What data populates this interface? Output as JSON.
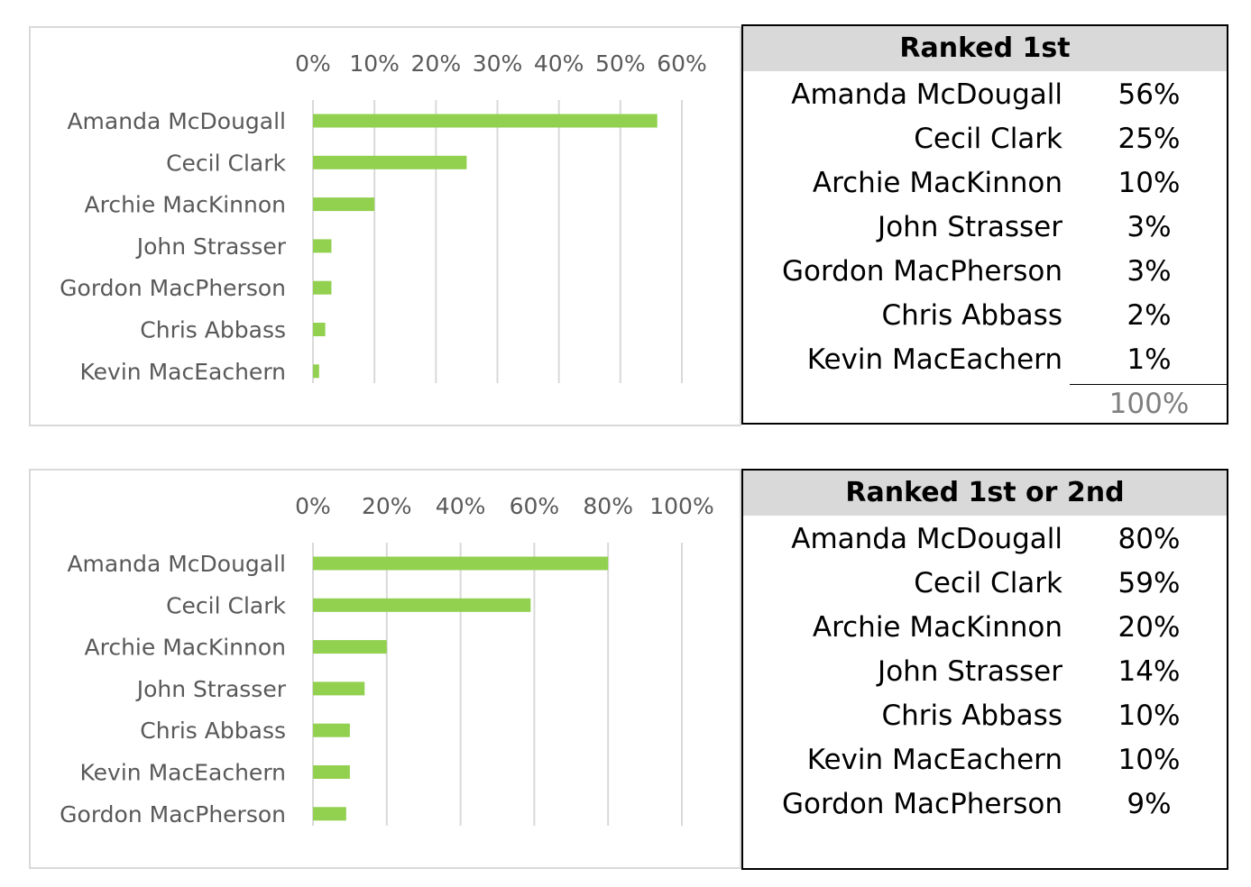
{
  "chart_data": [
    {
      "type": "bar",
      "orientation": "horizontal",
      "categories": [
        "Amanda McDougall",
        "Cecil Clark",
        "Archie MacKinnon",
        "John Strasser",
        "Gordon MacPherson",
        "Chris Abbass",
        "Kevin MacEachern"
      ],
      "values": [
        56,
        25,
        10,
        3,
        3,
        2,
        1
      ],
      "xlim": [
        0,
        60
      ],
      "xticks": [
        "0%",
        "10%",
        "20%",
        "30%",
        "40%",
        "50%",
        "60%"
      ],
      "xtick_values": [
        0,
        10,
        20,
        30,
        40,
        50,
        60
      ],
      "x_axis_position": "top",
      "grid": true,
      "bar_color": "#92d050",
      "title": "",
      "xlabel": "",
      "ylabel": ""
    },
    {
      "type": "bar",
      "orientation": "horizontal",
      "categories": [
        "Amanda McDougall",
        "Cecil Clark",
        "Archie MacKinnon",
        "John Strasser",
        "Chris Abbass",
        "Kevin MacEachern",
        "Gordon MacPherson"
      ],
      "values": [
        80,
        59,
        20,
        14,
        10,
        10,
        9
      ],
      "xlim": [
        0,
        100
      ],
      "xticks": [
        "0%",
        "20%",
        "40%",
        "60%",
        "80%",
        "100%"
      ],
      "xtick_values": [
        0,
        20,
        40,
        60,
        80,
        100
      ],
      "x_axis_position": "top",
      "grid": true,
      "bar_color": "#92d050",
      "title": "",
      "xlabel": "",
      "ylabel": ""
    }
  ],
  "tables": [
    {
      "header": "Ranked 1st",
      "rows": [
        {
          "name": "Amanda McDougall",
          "pct": "56%"
        },
        {
          "name": "Cecil Clark",
          "pct": "25%"
        },
        {
          "name": "Archie MacKinnon",
          "pct": "10%"
        },
        {
          "name": "John Strasser",
          "pct": "3%"
        },
        {
          "name": "Gordon MacPherson",
          "pct": "3%"
        },
        {
          "name": "Chris Abbass",
          "pct": "2%"
        },
        {
          "name": "Kevin MacEachern",
          "pct": "1%"
        }
      ],
      "total": "100%"
    },
    {
      "header": "Ranked 1st or 2nd",
      "rows": [
        {
          "name": "Amanda McDougall",
          "pct": "80%"
        },
        {
          "name": "Cecil Clark",
          "pct": "59%"
        },
        {
          "name": "Archie MacKinnon",
          "pct": "20%"
        },
        {
          "name": "John Strasser",
          "pct": "14%"
        },
        {
          "name": "Chris Abbass",
          "pct": "10%"
        },
        {
          "name": "Kevin MacEachern",
          "pct": "10%"
        },
        {
          "name": "Gordon MacPherson",
          "pct": "9%"
        }
      ]
    }
  ]
}
